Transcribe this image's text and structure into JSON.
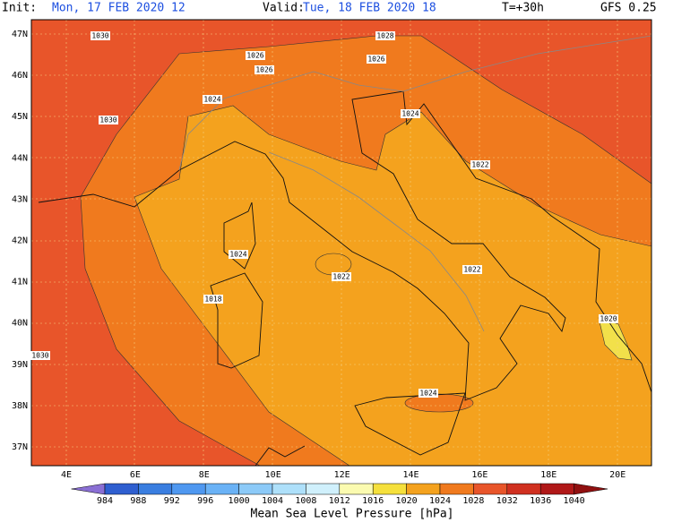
{
  "header": {
    "init_label": "Init:",
    "init_time": "Mon, 17 FEB 2020  12",
    "valid_label": "Valid:",
    "valid_time": "Tue, 18 FEB 2020  18",
    "step": "T=+30h",
    "model": "GFS 0.25"
  },
  "lat_labels": [
    "47N",
    "46N",
    "45N",
    "44N",
    "43N",
    "42N",
    "41N",
    "40N",
    "39N",
    "38N",
    "37N"
  ],
  "lon_labels": [
    "4E",
    "6E",
    "8E",
    "10E",
    "12E",
    "14E",
    "16E",
    "18E",
    "20E"
  ],
  "contour_labels": [
    "1030",
    "1028",
    "1026",
    "1026",
    "1026",
    "1024",
    "1030",
    "1024",
    "1022",
    "1024",
    "1022",
    "1022",
    "1018",
    "1020",
    "1030",
    "1024"
  ],
  "legend": {
    "title": "Mean Sea Level Pressure [hPa]",
    "ticks": [
      "984",
      "988",
      "992",
      "996",
      "1000",
      "1004",
      "1008",
      "1012",
      "1016",
      "1020",
      "1024",
      "1028",
      "1032",
      "1036",
      "1040"
    ],
    "colors": [
      "#8a6fd4",
      "#2f5fd0",
      "#3a7ee0",
      "#4f98f0",
      "#6ab2f6",
      "#8ccaf8",
      "#aee0fa",
      "#d0f0fc",
      "#fbfbb0",
      "#f5e03c",
      "#f4a21e",
      "#f07a1e",
      "#e8552a",
      "#d03020",
      "#b01818",
      "#901010"
    ]
  }
}
